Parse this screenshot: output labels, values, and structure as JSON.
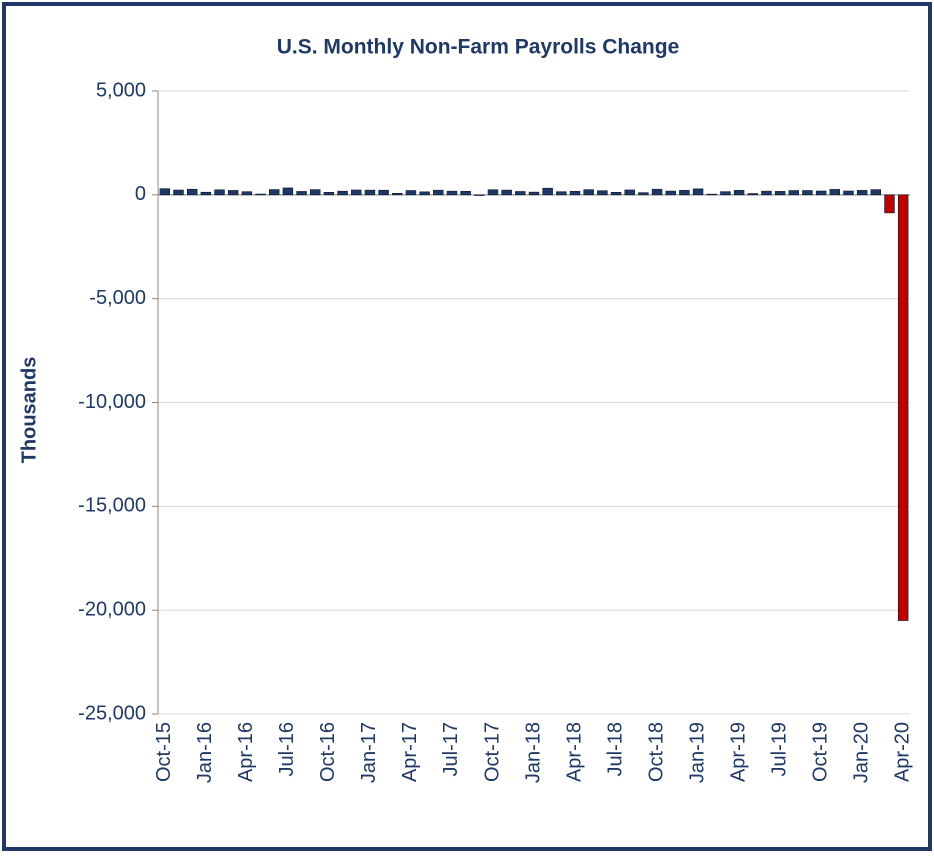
{
  "chart_data": {
    "type": "bar",
    "title": "U.S. Monthly Non-Farm Payrolls Change",
    "y_label": "Thousands",
    "categories": [
      "Oct-15",
      null,
      null,
      "Jan-16",
      null,
      null,
      "Apr-16",
      null,
      null,
      "Jul-16",
      null,
      null,
      "Oct-16",
      null,
      null,
      "Jan-17",
      null,
      null,
      "Apr-17",
      null,
      null,
      "Jul-17",
      null,
      null,
      "Oct-17",
      null,
      null,
      "Jan-18",
      null,
      null,
      "Apr-18",
      null,
      null,
      "Jul-18",
      null,
      null,
      "Oct-18",
      null,
      null,
      "Jan-19",
      null,
      null,
      "Apr-19",
      null,
      null,
      "Jul-19",
      null,
      null,
      "Oct-19",
      null,
      null,
      "Jan-20",
      null,
      null,
      "Apr-20"
    ],
    "values": [
      295,
      231,
      269,
      126,
      242,
      212,
      153,
      38,
      254,
      333,
      162,
      251,
      121,
      176,
      233,
      226,
      222,
      74,
      207,
      145,
      224,
      177,
      169,
      -33,
      246,
      228,
      161,
      131,
      320,
      150,
      170,
      249,
      200,
      121,
      235,
      105,
      270,
      181,
      217,
      288,
      33,
      153,
      216,
      62,
      178,
      166,
      207,
      208,
      185,
      261,
      184,
      214,
      251,
      -870,
      -20500
    ],
    "colors": [
      "#1f3864",
      "#1f3864",
      "#1f3864",
      "#1f3864",
      "#1f3864",
      "#1f3864",
      "#1f3864",
      "#1f3864",
      "#1f3864",
      "#1f3864",
      "#1f3864",
      "#1f3864",
      "#1f3864",
      "#1f3864",
      "#1f3864",
      "#1f3864",
      "#1f3864",
      "#1f3864",
      "#1f3864",
      "#1f3864",
      "#1f3864",
      "#1f3864",
      "#1f3864",
      "#1f3864",
      "#1f3864",
      "#1f3864",
      "#1f3864",
      "#1f3864",
      "#1f3864",
      "#1f3864",
      "#1f3864",
      "#1f3864",
      "#1f3864",
      "#1f3864",
      "#1f3864",
      "#1f3864",
      "#1f3864",
      "#1f3864",
      "#1f3864",
      "#1f3864",
      "#1f3864",
      "#1f3864",
      "#1f3864",
      "#1f3864",
      "#1f3864",
      "#1f3864",
      "#1f3864",
      "#1f3864",
      "#1f3864",
      "#1f3864",
      "#1f3864",
      "#1f3864",
      "#1f3864",
      "#c00000",
      "#c00000"
    ],
    "ylim": [
      -25000,
      5000
    ],
    "yticks": [
      {
        "value": 5000,
        "label": "5,000"
      },
      0,
      {
        "value": -5000,
        "label": "-5,000"
      },
      {
        "value": -10000,
        "label": "-10,000"
      },
      {
        "value": -15000,
        "label": "-15,000"
      },
      {
        "value": -20000,
        "label": "-20,000"
      },
      {
        "value": -25000,
        "label": "-25,000"
      }
    ],
    "grid": true
  }
}
